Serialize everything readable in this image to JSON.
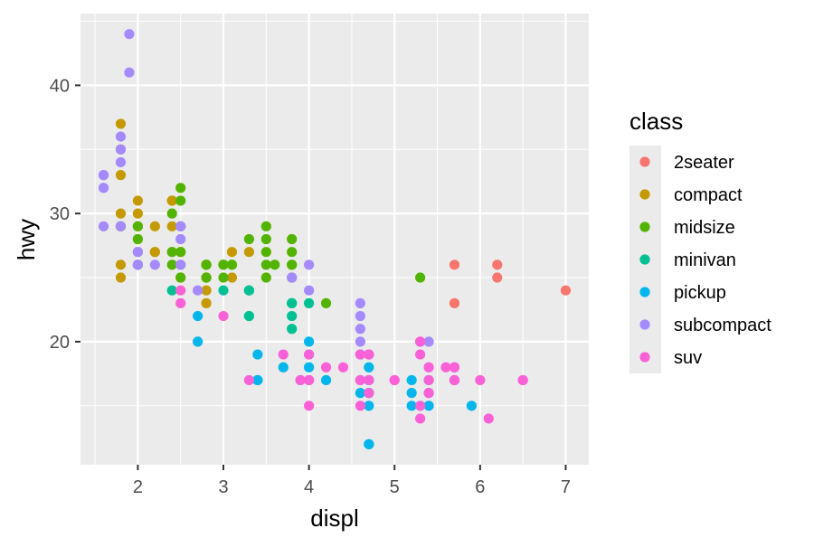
{
  "chart_data": {
    "type": "scatter",
    "title": "",
    "xlabel": "displ",
    "ylabel": "hwy",
    "xlim": [
      1.33,
      7.27
    ],
    "ylim": [
      10.4,
      45.6
    ],
    "x_ticks": [
      2,
      3,
      4,
      5,
      6,
      7
    ],
    "y_ticks": [
      20,
      30,
      40
    ],
    "grid": true,
    "legend": {
      "title": "class",
      "position": "right"
    },
    "series": [
      {
        "name": "2seater",
        "color": "#F8766D",
        "points": [
          [
            5.7,
            26
          ],
          [
            5.7,
            23
          ],
          [
            6.2,
            26
          ],
          [
            6.2,
            25
          ],
          [
            7.0,
            24
          ]
        ]
      },
      {
        "name": "compact",
        "color": "#C49A00",
        "points": [
          [
            1.8,
            29
          ],
          [
            1.8,
            29
          ],
          [
            2.0,
            31
          ],
          [
            2.0,
            30
          ],
          [
            2.8,
            26
          ],
          [
            2.8,
            26
          ],
          [
            3.1,
            27
          ],
          [
            1.8,
            26
          ],
          [
            1.8,
            25
          ],
          [
            2.0,
            28
          ],
          [
            2.0,
            29
          ],
          [
            2.8,
            25
          ],
          [
            2.8,
            25
          ],
          [
            3.1,
            25
          ],
          [
            1.8,
            37
          ],
          [
            1.8,
            35
          ],
          [
            1.8,
            33
          ],
          [
            1.8,
            30
          ],
          [
            2.0,
            26
          ],
          [
            2.0,
            29
          ],
          [
            2.2,
            27
          ],
          [
            2.2,
            29
          ],
          [
            2.4,
            31
          ],
          [
            2.4,
            27
          ],
          [
            2.4,
            31
          ],
          [
            2.4,
            29
          ],
          [
            2.5,
            27
          ],
          [
            2.5,
            25
          ],
          [
            2.5,
            27
          ],
          [
            2.8,
            24
          ],
          [
            2.8,
            23
          ],
          [
            3.0,
            26
          ],
          [
            3.0,
            26
          ],
          [
            3.3,
            27
          ],
          [
            2.2,
            27
          ]
        ]
      },
      {
        "name": "midsize",
        "color": "#53B400",
        "points": [
          [
            2.4,
            30
          ],
          [
            2.5,
            32
          ],
          [
            2.5,
            31
          ],
          [
            2.5,
            29
          ],
          [
            2.5,
            27
          ],
          [
            3.0,
            26
          ],
          [
            3.0,
            26
          ],
          [
            3.1,
            26
          ],
          [
            3.3,
            28
          ],
          [
            3.5,
            29
          ],
          [
            3.5,
            28
          ],
          [
            3.5,
            27
          ],
          [
            3.5,
            26
          ],
          [
            3.5,
            25
          ],
          [
            3.6,
            26
          ],
          [
            3.8,
            28
          ],
          [
            3.8,
            27
          ],
          [
            3.8,
            26
          ],
          [
            3.8,
            26
          ],
          [
            3.8,
            25
          ],
          [
            2.4,
            26
          ],
          [
            2.4,
            27
          ],
          [
            2.0,
            29
          ],
          [
            2.0,
            28
          ],
          [
            2.8,
            26
          ],
          [
            3.1,
            26
          ],
          [
            4.2,
            23
          ],
          [
            5.3,
            25
          ],
          [
            1.8,
            29
          ],
          [
            2.0,
            26
          ],
          [
            2.5,
            26
          ],
          [
            2.5,
            25
          ],
          [
            2.8,
            25
          ],
          [
            2.8,
            26
          ],
          [
            3.0,
            25
          ],
          [
            2.0,
            27
          ]
        ]
      },
      {
        "name": "minivan",
        "color": "#00C094",
        "points": [
          [
            2.4,
            24
          ],
          [
            3.0,
            24
          ],
          [
            3.3,
            22
          ],
          [
            3.3,
            24
          ],
          [
            3.8,
            22
          ],
          [
            3.8,
            23
          ],
          [
            3.8,
            21
          ],
          [
            4.0,
            23
          ],
          [
            3.3,
            22
          ],
          [
            3.3,
            24
          ],
          [
            3.8,
            23
          ]
        ]
      },
      {
        "name": "pickup",
        "color": "#00B6EB",
        "points": [
          [
            2.7,
            20
          ],
          [
            2.7,
            22
          ],
          [
            3.4,
            17
          ],
          [
            3.4,
            19
          ],
          [
            4.0,
            17
          ],
          [
            4.0,
            18
          ],
          [
            4.7,
            17
          ],
          [
            4.7,
            17
          ],
          [
            4.7,
            19
          ],
          [
            4.7,
            16
          ],
          [
            5.2,
            15
          ],
          [
            5.2,
            17
          ],
          [
            5.7,
            17
          ],
          [
            5.9,
            15
          ],
          [
            3.7,
            18
          ],
          [
            4.6,
            17
          ],
          [
            4.6,
            16
          ],
          [
            5.4,
            16
          ],
          [
            5.4,
            15
          ],
          [
            4.2,
            17
          ],
          [
            4.0,
            20
          ],
          [
            4.7,
            16
          ],
          [
            5.3,
            15
          ],
          [
            5.2,
            16
          ],
          [
            5.4,
            17
          ],
          [
            3.9,
            17
          ],
          [
            4.7,
            12
          ],
          [
            4.7,
            15
          ],
          [
            4.0,
            19
          ],
          [
            4.6,
            19
          ],
          [
            4.7,
            18
          ],
          [
            4.7,
            12
          ],
          [
            3.4,
            17
          ]
        ]
      },
      {
        "name": "subcompact",
        "color": "#A58AFF",
        "points": [
          [
            1.6,
            33
          ],
          [
            1.6,
            32
          ],
          [
            1.6,
            32
          ],
          [
            1.6,
            29
          ],
          [
            1.8,
            34
          ],
          [
            1.8,
            36
          ],
          [
            1.9,
            44
          ],
          [
            1.9,
            41
          ],
          [
            2.0,
            27
          ],
          [
            2.0,
            26
          ],
          [
            2.2,
            26
          ],
          [
            2.5,
            26
          ],
          [
            2.5,
            28
          ],
          [
            2.5,
            29
          ],
          [
            2.7,
            24
          ],
          [
            3.8,
            25
          ],
          [
            4.0,
            26
          ],
          [
            4.0,
            24
          ],
          [
            4.6,
            23
          ],
          [
            4.6,
            22
          ],
          [
            4.6,
            21
          ],
          [
            4.6,
            20
          ],
          [
            5.4,
            20
          ],
          [
            1.8,
            35
          ],
          [
            1.8,
            29
          ],
          [
            2.0,
            27
          ],
          [
            2.5,
            29
          ],
          [
            2.0,
            26
          ],
          [
            1.6,
            33
          ]
        ]
      },
      {
        "name": "suv",
        "color": "#FB61D7",
        "points": [
          [
            5.3,
            20
          ],
          [
            5.3,
            15
          ],
          [
            5.3,
            20
          ],
          [
            5.7,
            17
          ],
          [
            6.0,
            17
          ],
          [
            5.7,
            18
          ],
          [
            6.5,
            17
          ],
          [
            4.0,
            19
          ],
          [
            4.0,
            17
          ],
          [
            4.6,
            19
          ],
          [
            5.0,
            17
          ],
          [
            3.7,
            19
          ],
          [
            4.7,
            17
          ],
          [
            4.7,
            19
          ],
          [
            5.7,
            18
          ],
          [
            6.1,
            14
          ],
          [
            4.7,
            19
          ],
          [
            5.7,
            17
          ],
          [
            5.3,
            19
          ],
          [
            4.0,
            17
          ],
          [
            4.0,
            15
          ],
          [
            4.6,
            15
          ],
          [
            5.4,
            18
          ],
          [
            5.4,
            17
          ],
          [
            5.4,
            16
          ],
          [
            2.5,
            23
          ],
          [
            2.5,
            24
          ],
          [
            3.0,
            22
          ],
          [
            3.9,
            17
          ],
          [
            4.2,
            18
          ],
          [
            4.4,
            18
          ],
          [
            4.6,
            17
          ],
          [
            4.7,
            16
          ],
          [
            5.0,
            17
          ],
          [
            5.3,
            14
          ],
          [
            5.6,
            18
          ],
          [
            6.5,
            17
          ],
          [
            3.3,
            17
          ],
          [
            4.7,
            19
          ]
        ]
      }
    ]
  }
}
